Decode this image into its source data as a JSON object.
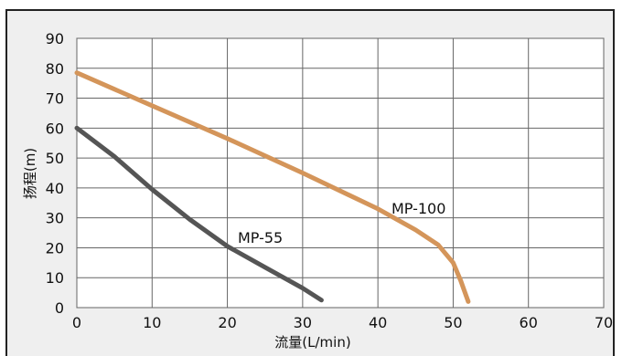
{
  "chart_data": {
    "type": "line",
    "xlabel": "流量(L/min)",
    "ylabel": "扬程(m)",
    "xlim": [
      0,
      70
    ],
    "ylim": [
      0,
      90
    ],
    "x_ticks": [
      "0",
      "10",
      "20",
      "30",
      "40",
      "50",
      "60",
      "70"
    ],
    "y_ticks": [
      "0",
      "10",
      "20",
      "30",
      "40",
      "50",
      "60",
      "70",
      "80",
      "90"
    ],
    "grid": true,
    "series": [
      {
        "name": "MP-100",
        "color": "#d4955a",
        "points": [
          [
            0,
            78.5
          ],
          [
            10,
            67.5
          ],
          [
            20,
            56.5
          ],
          [
            30,
            45
          ],
          [
            40,
            33
          ],
          [
            45,
            26
          ],
          [
            48,
            21
          ],
          [
            50,
            15
          ],
          [
            51,
            9
          ],
          [
            52,
            2
          ]
        ]
      },
      {
        "name": "MP-55",
        "color": "#555555",
        "points": [
          [
            0,
            60
          ],
          [
            5,
            50.5
          ],
          [
            10,
            39.5
          ],
          [
            15,
            29.5
          ],
          [
            20,
            20.5
          ],
          [
            25,
            13.5
          ],
          [
            30,
            6.5
          ],
          [
            32.5,
            2.5
          ]
        ]
      }
    ]
  }
}
